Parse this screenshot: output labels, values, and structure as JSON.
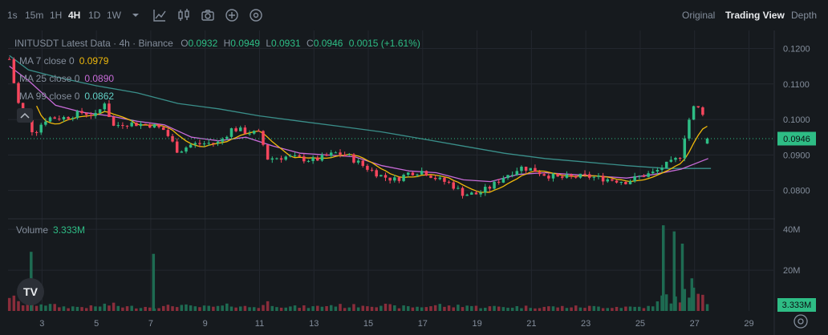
{
  "toolbar": {
    "intervals": [
      "1s",
      "15m",
      "1H",
      "4H",
      "1D",
      "1W"
    ],
    "active_interval": "4H",
    "views": [
      "Original",
      "Trading View",
      "Depth"
    ],
    "active_view": "Trading View",
    "icons": [
      "chevron-down-icon",
      "indicator-icon",
      "candle-type-icon",
      "camera-icon",
      "add-icon",
      "settings-icon"
    ]
  },
  "legend": {
    "symbol": "INITUSDT Latest Data · 4h · Binance",
    "open_label": "O",
    "open": "0.0932",
    "high_label": "H",
    "high": "0.0949",
    "low_label": "L",
    "low": "0.0931",
    "close_label": "C",
    "close": "0.0946",
    "change": "0.0015 (+1.61%)",
    "ma7_label": "MA 7 close 0",
    "ma7_value": "0.0979",
    "ma25_label": "MA 25 close 0",
    "ma25_value": "0.0890",
    "ma99_label": "MA 99 close 0",
    "ma99_value": "0.0862",
    "volume_label": "Volume",
    "volume_value": "3.333M",
    "logo_text": "TV"
  },
  "colors": {
    "up": "#2ebd85",
    "down": "#f6465d",
    "up_vol": "#1e6b52",
    "down_vol": "#8a2d3b",
    "ma7": "#f0b90b",
    "ma25": "#c86bd8",
    "ma99": "#3a8f8a",
    "price_tag": "#2ebd85"
  },
  "chart_data": {
    "type": "candlestick",
    "price_axis_labels": [
      "0.1200",
      "0.1100",
      "0.1000",
      "0.0900",
      "0.0800"
    ],
    "price_ticks": [
      0.12,
      0.11,
      0.1,
      0.09,
      0.08
    ],
    "ylim": [
      0.0727,
      0.1244
    ],
    "volume_axis_labels": [
      "40M",
      "20M"
    ],
    "volume_ticks": [
      40,
      20
    ],
    "vol_ylim": [
      0,
      44
    ],
    "x_tick_labels": [
      "3",
      "5",
      "7",
      "9",
      "11",
      "13",
      "15",
      "17",
      "19",
      "21",
      "23",
      "25",
      "27",
      "29"
    ],
    "x_tick_days": [
      3,
      5,
      7,
      9,
      11,
      13,
      15,
      17,
      19,
      21,
      23,
      25,
      27,
      29
    ],
    "x_day_range": [
      1.75,
      29.9
    ],
    "last_price_label": "0.0946",
    "last_price": 0.0946,
    "last_volume_label": "3.333M",
    "anchors": [
      {
        "day": 1.8,
        "price": 0.117,
        "vol": 8
      },
      {
        "day": 2.1,
        "price": 0.105,
        "vol": 4
      },
      {
        "day": 2.5,
        "price": 0.099,
        "vol": 3
      },
      {
        "day": 2.7,
        "price": 0.096,
        "vol": 3
      },
      {
        "day": 3.0,
        "price": 0.099,
        "vol": 4
      },
      {
        "day": 3.2,
        "price": 0.1005,
        "vol": 3
      },
      {
        "day": 3.8,
        "price": 0.1005,
        "vol": 2
      },
      {
        "day": 4.5,
        "price": 0.102,
        "vol": 2
      },
      {
        "day": 5.0,
        "price": 0.101,
        "vol": 2
      },
      {
        "day": 5.3,
        "price": 0.105,
        "vol": 3
      },
      {
        "day": 5.6,
        "price": 0.098,
        "vol": 3
      },
      {
        "day": 6.0,
        "price": 0.099,
        "vol": 2
      },
      {
        "day": 7.0,
        "price": 0.0985,
        "vol": 2
      },
      {
        "day": 7.5,
        "price": 0.097,
        "vol": 2
      },
      {
        "day": 8.0,
        "price": 0.091,
        "vol": 3
      },
      {
        "day": 8.5,
        "price": 0.093,
        "vol": 2
      },
      {
        "day": 9.5,
        "price": 0.0935,
        "vol": 2
      },
      {
        "day": 10.0,
        "price": 0.0975,
        "vol": 3
      },
      {
        "day": 10.5,
        "price": 0.0965,
        "vol": 2
      },
      {
        "day": 11.0,
        "price": 0.096,
        "vol": 2
      },
      {
        "day": 11.3,
        "price": 0.089,
        "vol": 4
      },
      {
        "day": 12.0,
        "price": 0.0895,
        "vol": 2
      },
      {
        "day": 12.5,
        "price": 0.089,
        "vol": 2
      },
      {
        "day": 13.0,
        "price": 0.0885,
        "vol": 2
      },
      {
        "day": 13.8,
        "price": 0.0905,
        "vol": 3
      },
      {
        "day": 14.2,
        "price": 0.09,
        "vol": 2
      },
      {
        "day": 14.8,
        "price": 0.087,
        "vol": 3
      },
      {
        "day": 15.5,
        "price": 0.084,
        "vol": 3
      },
      {
        "day": 16.0,
        "price": 0.083,
        "vol": 2
      },
      {
        "day": 16.5,
        "price": 0.085,
        "vol": 2
      },
      {
        "day": 17.0,
        "price": 0.0855,
        "vol": 2
      },
      {
        "day": 17.6,
        "price": 0.083,
        "vol": 3
      },
      {
        "day": 18.0,
        "price": 0.082,
        "vol": 2
      },
      {
        "day": 18.5,
        "price": 0.079,
        "vol": 3
      },
      {
        "day": 19.0,
        "price": 0.079,
        "vol": 2
      },
      {
        "day": 19.5,
        "price": 0.081,
        "vol": 2
      },
      {
        "day": 20.0,
        "price": 0.084,
        "vol": 2
      },
      {
        "day": 20.6,
        "price": 0.0865,
        "vol": 2
      },
      {
        "day": 21.0,
        "price": 0.086,
        "vol": 2
      },
      {
        "day": 21.5,
        "price": 0.0845,
        "vol": 2
      },
      {
        "day": 22.0,
        "price": 0.0835,
        "vol": 2
      },
      {
        "day": 23.0,
        "price": 0.084,
        "vol": 2
      },
      {
        "day": 24.0,
        "price": 0.083,
        "vol": 2
      },
      {
        "day": 24.5,
        "price": 0.0825,
        "vol": 2
      },
      {
        "day": 25.0,
        "price": 0.084,
        "vol": 2
      },
      {
        "day": 25.5,
        "price": 0.085,
        "vol": 2
      },
      {
        "day": 25.9,
        "price": 0.087,
        "vol": 8
      },
      {
        "day": 26.2,
        "price": 0.088,
        "vol": 5
      },
      {
        "day": 26.5,
        "price": 0.09,
        "vol": 6
      },
      {
        "day": 26.7,
        "price": 0.098,
        "vol": 10
      },
      {
        "day": 27.0,
        "price": 0.104,
        "vol": 9
      },
      {
        "day": 27.3,
        "price": 0.102,
        "vol": 6
      },
      {
        "day": 27.6,
        "price": 0.0946,
        "vol": 3.333
      }
    ],
    "volume_spikes": [
      {
        "day": 2.6,
        "vol": 29
      },
      {
        "day": 7.1,
        "vol": 28
      },
      {
        "day": 25.85,
        "vol": 42
      },
      {
        "day": 26.25,
        "vol": 39
      },
      {
        "day": 26.55,
        "vol": 33
      },
      {
        "day": 26.9,
        "vol": 16
      }
    ],
    "ma25": [
      [
        1.8,
        0.115
      ],
      [
        2.5,
        0.111
      ],
      [
        3.5,
        0.104
      ],
      [
        4.5,
        0.102
      ],
      [
        5.5,
        0.101
      ],
      [
        6.5,
        0.0995
      ],
      [
        7.5,
        0.0985
      ],
      [
        8.5,
        0.095
      ],
      [
        9.5,
        0.094
      ],
      [
        10.5,
        0.095
      ],
      [
        11.5,
        0.0925
      ],
      [
        12.5,
        0.0905
      ],
      [
        13.5,
        0.09
      ],
      [
        14.5,
        0.0895
      ],
      [
        15.5,
        0.087
      ],
      [
        16.5,
        0.0855
      ],
      [
        17.5,
        0.085
      ],
      [
        18.5,
        0.083
      ],
      [
        19.5,
        0.0825
      ],
      [
        20.5,
        0.0845
      ],
      [
        21.5,
        0.085
      ],
      [
        22.5,
        0.0845
      ],
      [
        23.5,
        0.084
      ],
      [
        24.5,
        0.0835
      ],
      [
        25.5,
        0.0845
      ],
      [
        26.5,
        0.086
      ],
      [
        27.5,
        0.089
      ]
    ],
    "ma99": [
      [
        1.8,
        0.118
      ],
      [
        2.5,
        0.114
      ],
      [
        3.5,
        0.112
      ],
      [
        5.0,
        0.1095
      ],
      [
        6.5,
        0.1075
      ],
      [
        8.0,
        0.1045
      ],
      [
        9.5,
        0.103
      ],
      [
        11.0,
        0.101
      ],
      [
        12.5,
        0.0995
      ],
      [
        14.0,
        0.098
      ],
      [
        15.5,
        0.0965
      ],
      [
        17.0,
        0.0945
      ],
      [
        18.5,
        0.0925
      ],
      [
        20.0,
        0.0905
      ],
      [
        21.5,
        0.089
      ],
      [
        23.0,
        0.088
      ],
      [
        24.5,
        0.087
      ],
      [
        26.0,
        0.0862
      ],
      [
        27.6,
        0.0862
      ]
    ]
  }
}
